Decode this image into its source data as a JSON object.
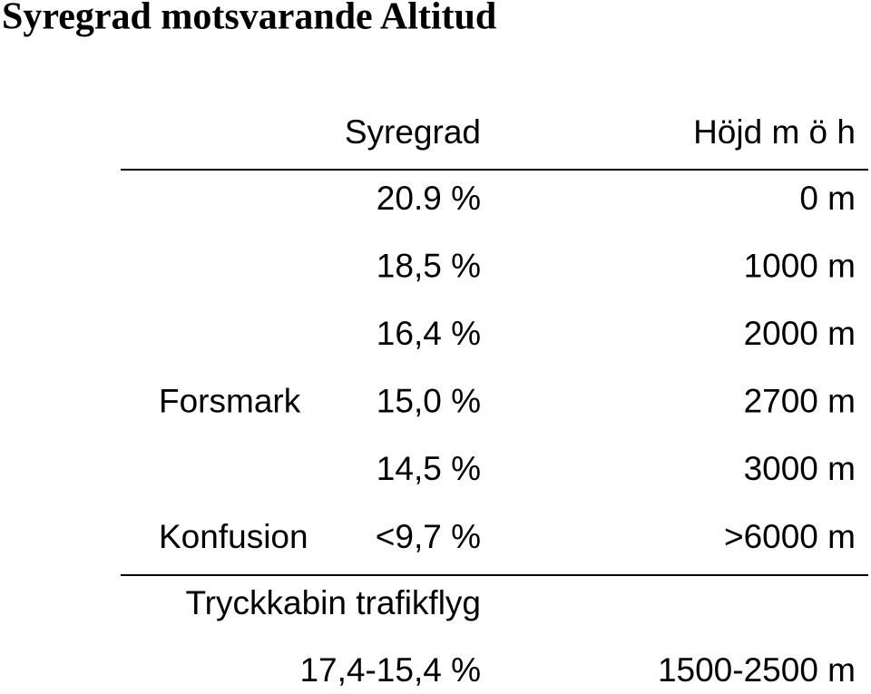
{
  "title": "Syregrad motsvarande Altitud",
  "table": {
    "columns": [
      "Syregrad",
      "Höjd m ö h"
    ],
    "rows": [
      {
        "oxygen": "20.9 %",
        "altitude": "0 m"
      },
      {
        "oxygen": "18,5 %",
        "altitude": "1000 m"
      },
      {
        "oxygen": "16,4 %",
        "altitude": "2000 m"
      },
      {
        "label": "Forsmark",
        "oxygen": "15,0 %",
        "altitude": "2700 m"
      },
      {
        "oxygen": "14,5 %",
        "altitude": "3000 m"
      },
      {
        "label": "Konfusion",
        "oxygen": "<9,7 %",
        "altitude": ">6000 m"
      }
    ],
    "section": {
      "title": "Tryckkabin trafikflyg",
      "rows": [
        {
          "oxygen": "17,4-15,4 %",
          "altitude": "1500-2500 m"
        }
      ]
    }
  }
}
